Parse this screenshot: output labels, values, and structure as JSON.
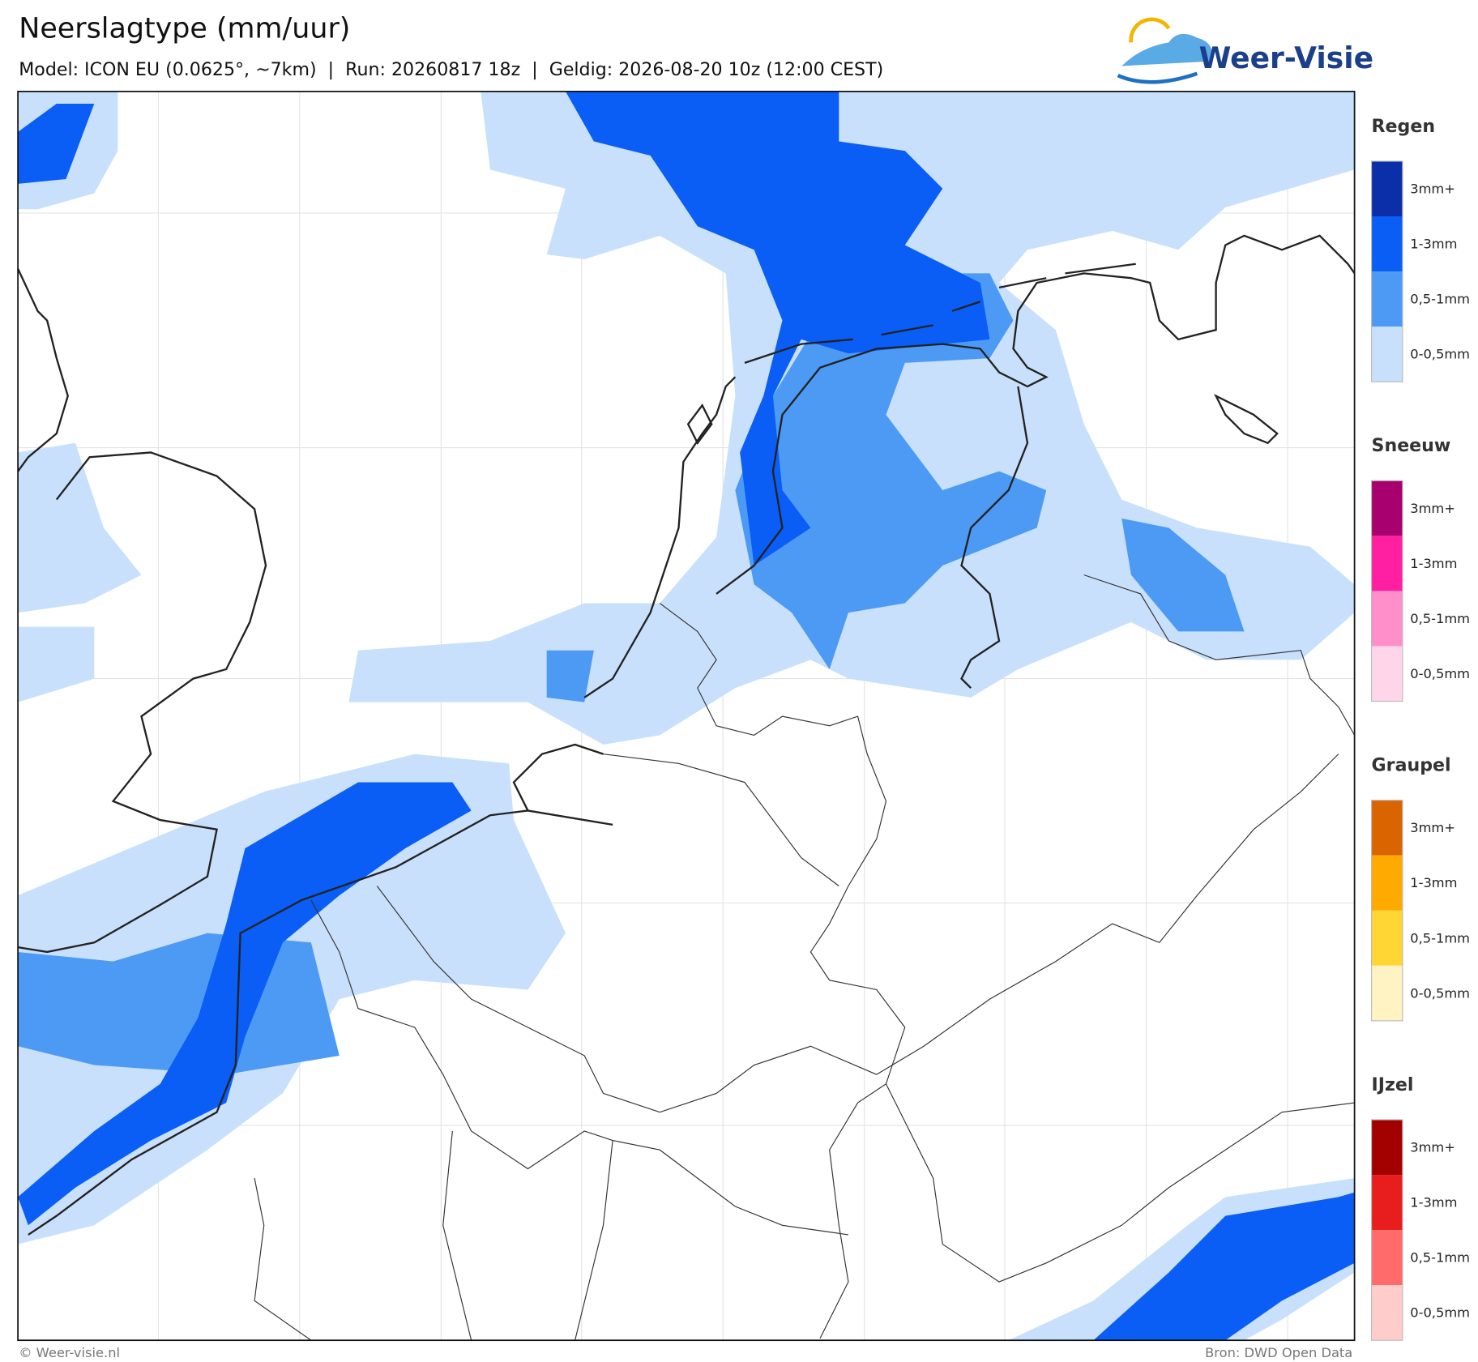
{
  "header": {
    "title": "Neerslagtype (mm/uur)",
    "subtitle": "Model: ICON EU (0.0625°, ~7km)  |  Run: 20260817 18z  |  Geldig: 2026-08-20 10z (12:00 CEST)",
    "logo": "Weer-Visie"
  },
  "legend": [
    {
      "title": "Regen",
      "items": [
        {
          "label": "3mm+",
          "color": "#0a2fa8"
        },
        {
          "label": "1-3mm",
          "color": "#0a5ef5"
        },
        {
          "label": "0,5-1mm",
          "color": "#4d9af5"
        },
        {
          "label": "0-0,5mm",
          "color": "#c8e0fc"
        }
      ]
    },
    {
      "title": "Sneeuw",
      "items": [
        {
          "label": "3mm+",
          "color": "#a8006e"
        },
        {
          "label": "1-3mm",
          "color": "#ff1fa0"
        },
        {
          "label": "0,5-1mm",
          "color": "#ff8fcb"
        },
        {
          "label": "0-0,5mm",
          "color": "#ffd5ea"
        }
      ]
    },
    {
      "title": "Graupel",
      "items": [
        {
          "label": "3mm+",
          "color": "#d96400"
        },
        {
          "label": "1-3mm",
          "color": "#ffaa00"
        },
        {
          "label": "0,5-1mm",
          "color": "#ffd633"
        },
        {
          "label": "0-0,5mm",
          "color": "#fff3c4"
        }
      ]
    },
    {
      "title": "IJzel",
      "items": [
        {
          "label": "3mm+",
          "color": "#a30000"
        },
        {
          "label": "1-3mm",
          "color": "#e81e1e"
        },
        {
          "label": "0,5-1mm",
          "color": "#ff6b6b"
        },
        {
          "label": "0-0,5mm",
          "color": "#ffcccc"
        }
      ]
    }
  ],
  "footer": {
    "copyright": "© Weer-visie.nl",
    "source": "Bron: DWD Open Data"
  }
}
